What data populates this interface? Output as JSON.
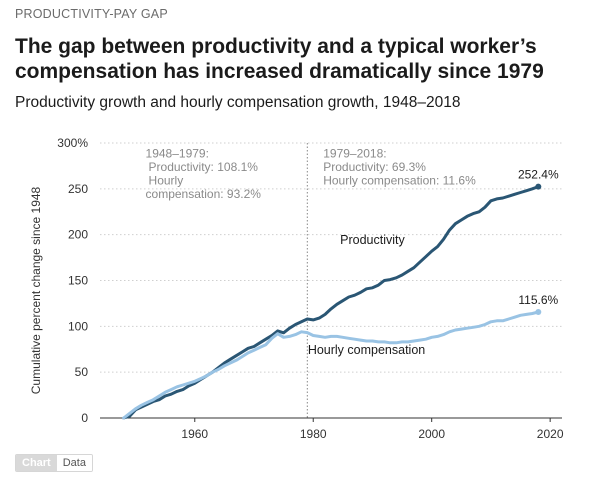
{
  "header": {
    "kicker": "PRODUCTIVITY-PAY GAP",
    "title": "The gap between productivity and a typical worker’s compensation has increased dramatically since 1979",
    "subtitle": "Productivity growth and hourly compensation growth, 1948–2018"
  },
  "tabs": [
    {
      "label": "Chart",
      "active": true
    },
    {
      "label": "Data",
      "active": false
    }
  ],
  "colors": {
    "productivity": "#2a5674",
    "compensation": "#99c3e4",
    "annotation_text": "#8a8a8a",
    "grid": "#cfcfcf"
  },
  "chart_data": {
    "type": "line",
    "xlabel": "",
    "ylabel": "Cumulative percent change since 1948",
    "xlim": [
      1944,
      2022
    ],
    "ylim": [
      0,
      300
    ],
    "x_ticks": [
      1960,
      1980,
      2000,
      2020
    ],
    "x_tick_labels": [
      "1960",
      "1980",
      "2000",
      "2020"
    ],
    "y_ticks": [
      0,
      50,
      100,
      150,
      200,
      250,
      300
    ],
    "y_tick_labels": [
      "0",
      "50",
      "100",
      "150",
      "200",
      "250",
      "300%"
    ],
    "grid": "horizontal dotted",
    "x": [
      1948,
      1949,
      1950,
      1951,
      1952,
      1953,
      1954,
      1955,
      1956,
      1957,
      1958,
      1959,
      1960,
      1961,
      1962,
      1963,
      1964,
      1965,
      1966,
      1967,
      1968,
      1969,
      1970,
      1971,
      1972,
      1973,
      1974,
      1975,
      1976,
      1977,
      1978,
      1979,
      1980,
      1981,
      1982,
      1983,
      1984,
      1985,
      1986,
      1987,
      1988,
      1989,
      1990,
      1991,
      1992,
      1993,
      1994,
      1995,
      1996,
      1997,
      1998,
      1999,
      2000,
      2001,
      2002,
      2003,
      2004,
      2005,
      2006,
      2007,
      2008,
      2009,
      2010,
      2011,
      2012,
      2013,
      2014,
      2015,
      2016,
      2017,
      2018
    ],
    "series": [
      {
        "name": "Productivity",
        "color_key": "productivity",
        "label_year": 1990,
        "label_value": 190,
        "end_label": "252.4%",
        "values": [
          0,
          2,
          9,
          12,
          15,
          18,
          20,
          24,
          26,
          29,
          31,
          35,
          38,
          42,
          46,
          50,
          55,
          60,
          64,
          68,
          72,
          76,
          78,
          82,
          86,
          90,
          95,
          93,
          98,
          102,
          105,
          108,
          107,
          109,
          113,
          119,
          124,
          128,
          132,
          134,
          137,
          141,
          142,
          145,
          150,
          151,
          153,
          156,
          160,
          164,
          170,
          176,
          182,
          187,
          195,
          205,
          212,
          216,
          220,
          223,
          225,
          230,
          237,
          239,
          240,
          242,
          244,
          246,
          248,
          250,
          252.4
        ]
      },
      {
        "name": "Hourly compensation",
        "color_key": "compensation",
        "label_year": 1989,
        "label_value": 70,
        "end_label": "115.6%",
        "values": [
          0,
          5,
          10,
          14,
          17,
          20,
          24,
          28,
          31,
          34,
          36,
          38,
          40,
          43,
          46,
          50,
          53,
          57,
          60,
          63,
          67,
          71,
          74,
          77,
          80,
          87,
          92,
          88,
          89,
          91,
          94,
          93.2,
          90,
          89,
          88,
          89,
          89,
          88,
          87,
          86,
          85,
          84,
          84,
          83,
          83,
          82,
          82,
          83,
          83,
          84,
          85,
          86,
          88,
          89,
          91,
          94,
          96,
          97,
          98,
          99,
          100,
          102,
          105,
          106,
          106,
          108,
          110,
          112,
          113,
          114,
          115.6
        ]
      }
    ],
    "reference_line": {
      "year": 1979
    },
    "annotations": [
      {
        "year": 1950,
        "value": 295,
        "lines": [
          "1948–1979:",
          "Productivity: 108.1%",
          "Hourly",
          "compensation: 93.2%"
        ]
      },
      {
        "year": 1980,
        "value": 295,
        "lines": [
          "1979–2018:",
          "Productivity: 69.3%",
          "Hourly compensation: 11.6%"
        ]
      }
    ]
  }
}
